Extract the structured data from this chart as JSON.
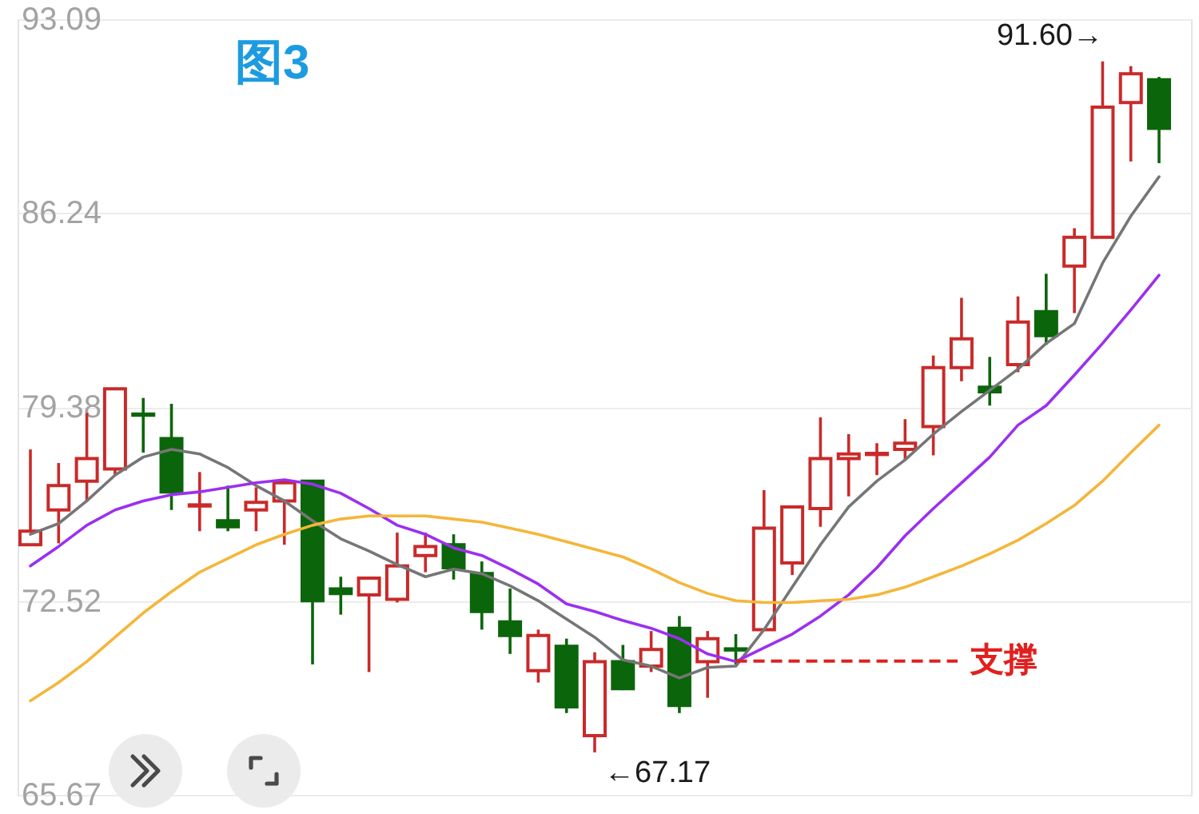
{
  "chart_data": {
    "type": "candlestick",
    "title": "图3",
    "categories": [
      null,
      null,
      null,
      null,
      null,
      null,
      null,
      null,
      null,
      null,
      null,
      null,
      null,
      null,
      null,
      null,
      null,
      null,
      null,
      null,
      null,
      null,
      null,
      null,
      null,
      null,
      null,
      null,
      null,
      null,
      null,
      null,
      null,
      null,
      null,
      null,
      null,
      null,
      null,
      null,
      null
    ],
    "ohlc": [
      [
        74.51,
        77.88,
        74.51,
        74.99
      ],
      [
        75.74,
        77.4,
        74.56,
        76.6
      ],
      [
        76.76,
        79.17,
        76.06,
        77.56
      ],
      [
        77.19,
        80.02,
        76.97,
        80.02
      ],
      [
        79.13,
        79.7,
        77.77,
        79.09
      ],
      [
        78.26,
        79.49,
        75.74,
        76.38
      ],
      [
        75.88,
        77.08,
        74.99,
        75.92
      ],
      [
        75.36,
        76.6,
        74.99,
        75.15
      ],
      [
        75.74,
        76.54,
        74.99,
        76.01
      ],
      [
        76.06,
        76.7,
        74.51,
        76.7
      ],
      [
        76.76,
        76.76,
        70.28,
        72.53
      ],
      [
        72.95,
        73.38,
        72.04,
        72.79
      ],
      [
        72.74,
        73.33,
        70.01,
        73.33
      ],
      [
        72.58,
        74.94,
        72.47,
        73.76
      ],
      [
        74.13,
        74.94,
        73.54,
        74.45
      ],
      [
        74.51,
        74.88,
        73.28,
        73.7
      ],
      [
        73.49,
        73.92,
        71.51,
        72.15
      ],
      [
        71.78,
        72.96,
        70.65,
        71.3
      ],
      [
        70.06,
        71.51,
        69.64,
        71.3
      ],
      [
        70.92,
        71.19,
        68.56,
        68.78
      ],
      [
        67.76,
        70.71,
        67.17,
        70.38
      ],
      [
        70.38,
        70.97,
        69.37,
        69.42
      ],
      [
        70.22,
        71.46,
        70.01,
        70.81
      ],
      [
        71.56,
        71.99,
        68.56,
        68.83
      ],
      [
        70.38,
        71.46,
        69.1,
        71.19
      ],
      [
        70.83,
        71.35,
        70.28,
        70.79
      ],
      [
        71.51,
        76.44,
        71.51,
        75.1
      ],
      [
        73.87,
        75.85,
        73.44,
        75.85
      ],
      [
        75.79,
        79.01,
        75.15,
        77.56
      ],
      [
        77.56,
        78.42,
        76.22,
        77.72
      ],
      [
        77.7,
        78.1,
        76.97,
        77.74
      ],
      [
        77.88,
        78.95,
        77.51,
        78.1
      ],
      [
        78.69,
        81.2,
        77.67,
        80.77
      ],
      [
        80.77,
        83.24,
        80.29,
        81.79
      ],
      [
        80.08,
        81.15,
        79.43,
        79.92
      ],
      [
        80.88,
        83.29,
        80.61,
        82.38
      ],
      [
        82.75,
        84.09,
        81.58,
        81.9
      ],
      [
        84.36,
        85.7,
        82.7,
        85.38
      ],
      [
        85.38,
        91.6,
        85.38,
        89.98
      ],
      [
        90.14,
        91.43,
        88.06,
        91.16
      ],
      [
        90.95,
        91.05,
        88.0,
        89.23
      ]
    ],
    "colors": [
      "#c92a2a",
      "#c92a2a",
      "#c92a2a",
      "#c92a2a",
      "#0b650b",
      "#0b650b",
      "#c92a2a",
      "#0b650b",
      "#c92a2a",
      "#c92a2a",
      "#0b650b",
      "#0b650b",
      "#c92a2a",
      "#c92a2a",
      "#c92a2a",
      "#0b650b",
      "#0b650b",
      "#0b650b",
      "#c92a2a",
      "#0b650b",
      "#c92a2a",
      "#0b650b",
      "#c92a2a",
      "#0b650b",
      "#c92a2a",
      "#0b650b",
      "#c92a2a",
      "#c92a2a",
      "#c92a2a",
      "#c92a2a",
      "#c92a2a",
      "#c92a2a",
      "#c92a2a",
      "#c92a2a",
      "#0b650b",
      "#c92a2a",
      "#0b650b",
      "#c92a2a",
      "#c92a2a",
      "#c92a2a",
      "#0b650b"
    ],
    "series": [
      {
        "type": "line",
        "color": "#767676",
        "values": [
          74.88,
          75.26,
          76.06,
          76.97,
          77.61,
          77.88,
          77.72,
          77.24,
          76.6,
          76.06,
          75.36,
          74.72,
          74.29,
          73.81,
          73.38,
          73.65,
          73.49,
          73.06,
          72.53,
          71.88,
          71.24,
          70.44,
          70.22,
          69.8,
          70.17,
          70.22,
          71.51,
          73.01,
          74.51,
          75.85,
          76.76,
          77.51,
          78.42,
          79.22,
          79.97,
          80.72,
          81.63,
          82.33,
          84.47,
          86.13,
          87.52
        ]
      },
      {
        "type": "line",
        "color": "#9b30f0",
        "values": [
          73.76,
          74.45,
          75.2,
          75.74,
          76.06,
          76.28,
          76.38,
          76.54,
          76.7,
          76.81,
          76.65,
          76.33,
          75.79,
          75.2,
          74.88,
          74.4,
          74.13,
          73.65,
          73.12,
          72.42,
          72.15,
          71.83,
          71.56,
          71.19,
          70.65,
          70.38,
          70.87,
          71.35,
          71.99,
          72.74,
          73.7,
          74.83,
          75.79,
          76.7,
          77.61,
          78.74,
          79.43,
          80.51,
          81.63,
          82.81,
          84.04
        ]
      },
      {
        "type": "line",
        "color": "#f4b63a",
        "values": [
          68.99,
          69.64,
          70.38,
          71.24,
          72.1,
          72.85,
          73.54,
          74.03,
          74.51,
          74.88,
          75.2,
          75.42,
          75.53,
          75.53,
          75.53,
          75.42,
          75.31,
          75.1,
          74.88,
          74.62,
          74.35,
          74.08,
          73.65,
          73.17,
          72.79,
          72.53,
          72.47,
          72.47,
          72.53,
          72.58,
          72.74,
          73.01,
          73.38,
          73.76,
          74.19,
          74.67,
          75.26,
          75.9,
          76.76,
          77.77,
          78.74
        ]
      }
    ],
    "ylim": [
      65.67,
      93.09
    ],
    "yticks": [
      93.09,
      86.24,
      79.38,
      72.52,
      65.67
    ],
    "grid": "y",
    "tick_labels": "y",
    "ref_lines": [
      {
        "axis": "y",
        "value": 70.4,
        "label": "支撑",
        "color": "#e02020",
        "line_style": "dashed"
      }
    ],
    "annotations": [
      "91.60→",
      "←67.17"
    ]
  }
}
